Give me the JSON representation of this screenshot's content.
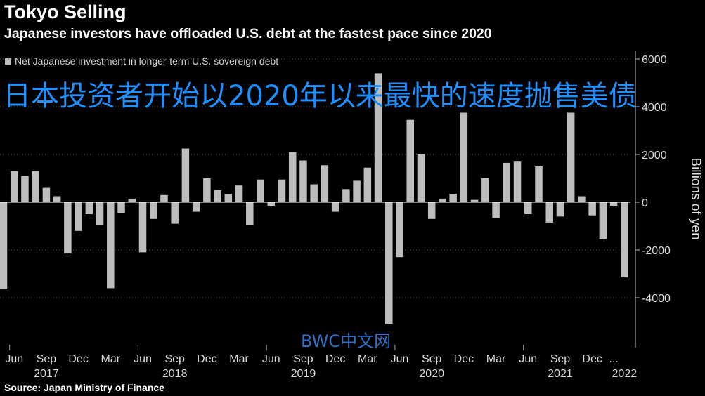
{
  "title": "Tokyo Selling",
  "subtitle": "Japanese investors have offloaded U.S. debt at the fastest pace since 2020",
  "legend_label": "Net Japanese investment in longer-term U.S. sovereign debt",
  "overlay_chinese": "日本投资者开始以2020年以来最快的速度抛售美债",
  "watermark": "BWC中文网",
  "source": "Source: Japan Ministry of Finance",
  "chart_data": {
    "type": "bar",
    "title": "Tokyo Selling",
    "ylabel": "Billions of yen",
    "ylim": [
      -6000,
      6000
    ],
    "yticks": [
      -4000,
      -2000,
      0,
      2000,
      4000,
      6000
    ],
    "y_axis_side": "right",
    "month_ticks": [
      {
        "label": "Jun",
        "index": 1
      },
      {
        "label": "Sep",
        "index": 4
      },
      {
        "label": "Dec",
        "index": 7
      },
      {
        "label": "Mar",
        "index": 10
      },
      {
        "label": "Jun",
        "index": 13
      },
      {
        "label": "Sep",
        "index": 16
      },
      {
        "label": "Dec",
        "index": 19
      },
      {
        "label": "Mar",
        "index": 22
      },
      {
        "label": "Jun",
        "index": 25
      },
      {
        "label": "Sep",
        "index": 28
      },
      {
        "label": "Dec",
        "index": 31
      },
      {
        "label": "Mar",
        "index": 34
      },
      {
        "label": "Jun",
        "index": 37
      },
      {
        "label": "Sep",
        "index": 40
      },
      {
        "label": "Dec",
        "index": 43
      },
      {
        "label": "Mar",
        "index": 46
      },
      {
        "label": "Jun",
        "index": 49
      },
      {
        "label": "Sep",
        "index": 52
      },
      {
        "label": "Dec",
        "index": 55
      },
      {
        "label": "...",
        "index": 57
      }
    ],
    "year_labels": [
      {
        "label": "2017",
        "index": 4
      },
      {
        "label": "2018",
        "index": 16
      },
      {
        "label": "2019",
        "index": 28
      },
      {
        "label": "2020",
        "index": 40
      },
      {
        "label": "2021",
        "index": 52
      },
      {
        "label": "2022",
        "index": 58
      }
    ],
    "values": [
      -3650,
      1300,
      1100,
      1300,
      600,
      250,
      -2150,
      -1200,
      -500,
      -950,
      -3600,
      -450,
      150,
      -2100,
      -700,
      300,
      -900,
      2250,
      -400,
      1000,
      500,
      350,
      700,
      -950,
      950,
      -150,
      950,
      2100,
      1750,
      750,
      1550,
      -400,
      550,
      900,
      1450,
      5400,
      -5100,
      -2300,
      3450,
      2000,
      -700,
      150,
      350,
      3750,
      100,
      1000,
      -650,
      1650,
      1700,
      -500,
      1500,
      -850,
      -600,
      3750,
      250,
      -550,
      -1550,
      -150,
      -3150
    ]
  }
}
